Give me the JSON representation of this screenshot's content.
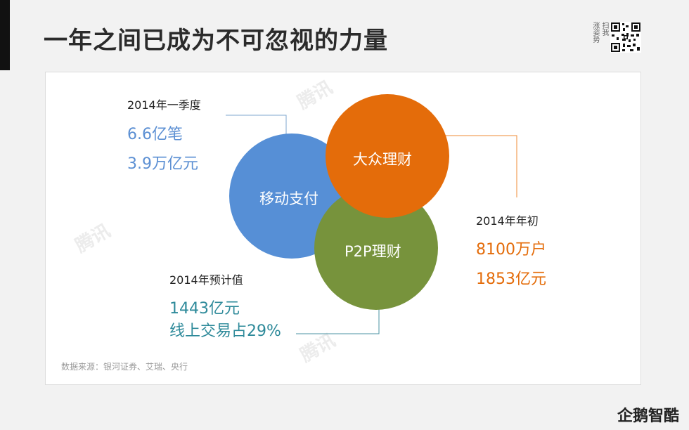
{
  "header": {
    "title": "一年之间已成为不可忽视的力量",
    "qr_label_left": "涨姿势",
    "qr_label_right": "扫我"
  },
  "colors": {
    "mobile_pay": "#568fd6",
    "wealth": "#e46c0a",
    "p2p": "#77933c",
    "teal_text": "#2e8a9a"
  },
  "diagram": {
    "circles": {
      "mobile_pay": "移动支付",
      "wealth": "大众理财",
      "p2p": "P2P理财"
    },
    "mobile_pay_stats": {
      "title": "2014年一季度",
      "line1": "6.6亿笔",
      "line2": "3.9万亿元"
    },
    "wealth_stats": {
      "title": "2014年年初",
      "line1": "8100万户",
      "line2": "1853亿元"
    },
    "p2p_stats": {
      "title": "2014年预计值",
      "line1": "1443亿元",
      "line2": "线上交易占29%"
    }
  },
  "footer": {
    "source": "数据来源：银河证券、艾瑞、央行",
    "watermark": "腾讯",
    "brand": "企鹅智酷"
  }
}
